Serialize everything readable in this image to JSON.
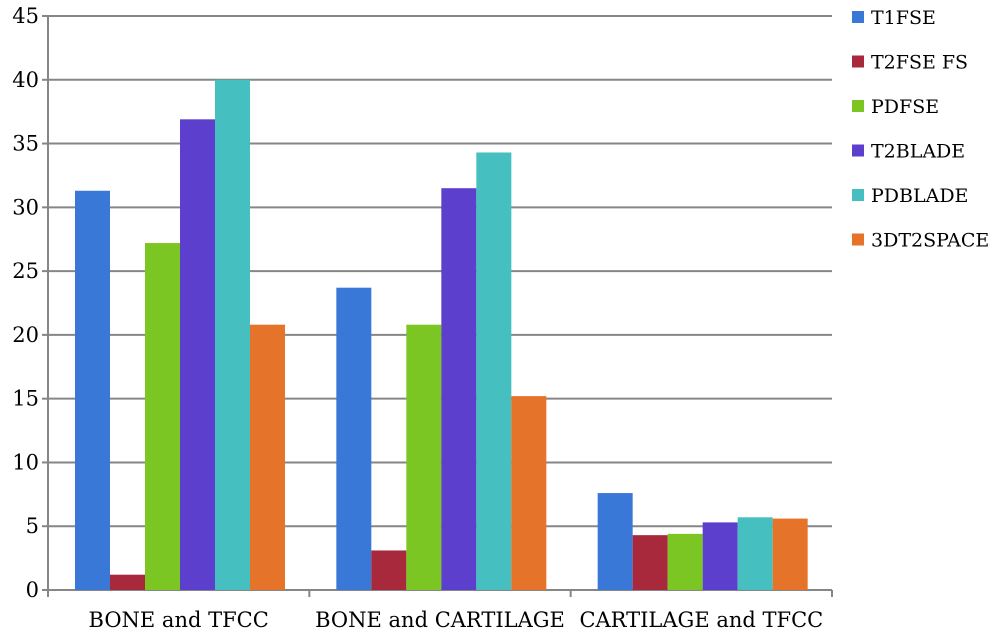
{
  "chart_data": {
    "type": "bar",
    "title": "",
    "xlabel": "",
    "ylabel": "",
    "ylim": [
      0,
      45
    ],
    "y_ticks": [
      "0",
      "5",
      "10",
      "15",
      "20",
      "25",
      "30",
      "35",
      "40",
      "45"
    ],
    "grid": true,
    "legend_position": "right",
    "categories": [
      "BONE and  TFCC",
      "BONE and CARTILAGE",
      "CARTILAGE and TFCC"
    ],
    "series": [
      {
        "name": "T1FSE",
        "color": "#3a78d8",
        "values": [
          31.3,
          23.7,
          7.6
        ]
      },
      {
        "name": "T2FSE FS",
        "color": "#a8283c",
        "values": [
          1.2,
          3.1,
          4.3
        ]
      },
      {
        "name": "PDFSE",
        "color": "#7cc623",
        "values": [
          27.2,
          20.8,
          4.4
        ]
      },
      {
        "name": "T2BLADE",
        "color": "#5c3fcc",
        "values": [
          36.9,
          31.5,
          5.3
        ]
      },
      {
        "name": "PDBLADE",
        "color": "#45bfbf",
        "values": [
          40.0,
          34.3,
          5.7
        ]
      },
      {
        "name": "3DT2SPACE",
        "color": "#e6732a",
        "values": [
          20.8,
          15.2,
          5.6
        ]
      }
    ]
  }
}
